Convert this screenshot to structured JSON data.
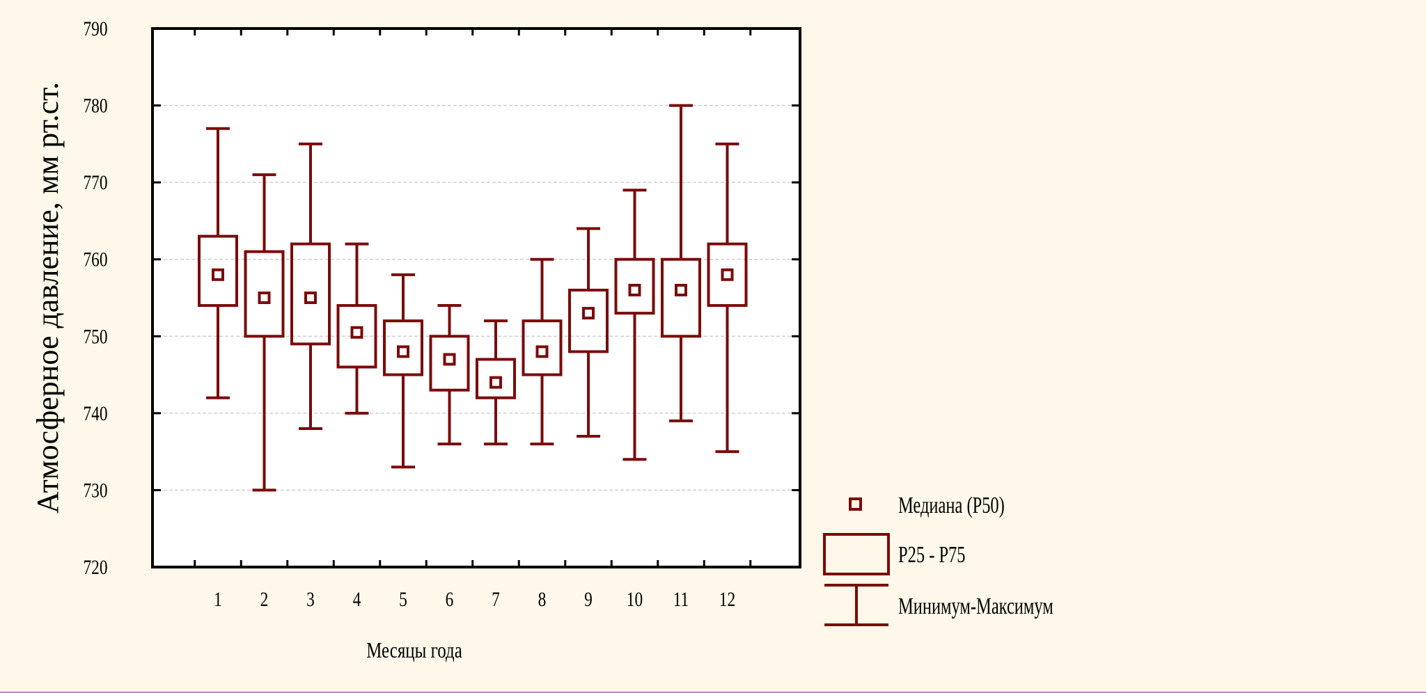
{
  "chart_data": {
    "type": "boxplot",
    "xlabel": "Месяцы года",
    "ylabel": "Атмосферное давление, мм рт.ст.",
    "ylim": [
      720,
      790
    ],
    "yticks": [
      720,
      730,
      740,
      750,
      760,
      770,
      780,
      790
    ],
    "grid": true,
    "legend_position": "bottom-right",
    "color": "#7b0a0a",
    "categories": [
      "1",
      "2",
      "3",
      "4",
      "5",
      "6",
      "7",
      "8",
      "9",
      "10",
      "11",
      "12"
    ],
    "series": [
      {
        "min": 742,
        "q1": 754,
        "median": 758,
        "q3": 763,
        "max": 777
      },
      {
        "min": 730,
        "q1": 750,
        "median": 755,
        "q3": 761,
        "max": 771
      },
      {
        "min": 738,
        "q1": 749,
        "median": 755,
        "q3": 762,
        "max": 775
      },
      {
        "min": 740,
        "q1": 746,
        "median": 750.5,
        "q3": 754,
        "max": 762
      },
      {
        "min": 733,
        "q1": 745,
        "median": 748,
        "q3": 752,
        "max": 758
      },
      {
        "min": 736,
        "q1": 743,
        "median": 747,
        "q3": 750,
        "max": 754
      },
      {
        "min": 736,
        "q1": 742,
        "median": 744,
        "q3": 747,
        "max": 752
      },
      {
        "min": 736,
        "q1": 745,
        "median": 748,
        "q3": 752,
        "max": 760
      },
      {
        "min": 737,
        "q1": 748,
        "median": 753,
        "q3": 756,
        "max": 764
      },
      {
        "min": 734,
        "q1": 753,
        "median": 756,
        "q3": 760,
        "max": 769
      },
      {
        "min": 739,
        "q1": 750,
        "median": 756,
        "q3": 760,
        "max": 780
      },
      {
        "min": 735,
        "q1": 754,
        "median": 758,
        "q3": 762,
        "max": 775
      }
    ],
    "legend": [
      {
        "symbol": "median",
        "label": "Медиана (P50)"
      },
      {
        "symbol": "box",
        "label": "P25 - P75"
      },
      {
        "symbol": "whisker",
        "label": "Минимум-Максимум"
      }
    ]
  }
}
